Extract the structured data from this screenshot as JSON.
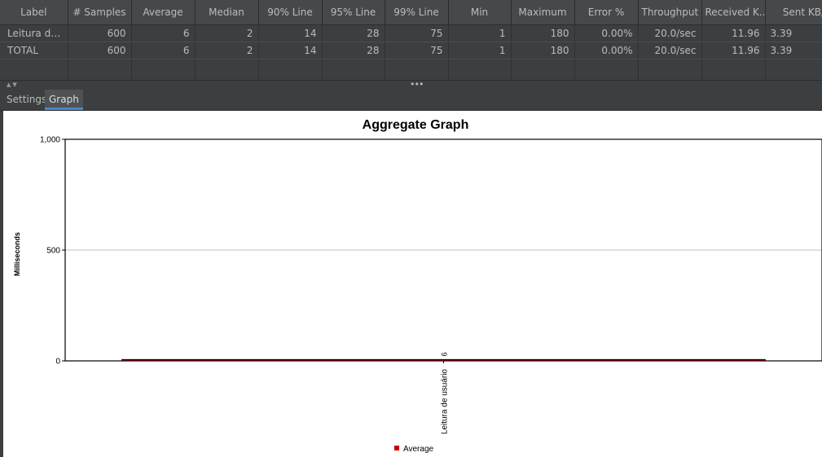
{
  "table": {
    "columns": [
      "Label",
      "# Samples",
      "Average",
      "Median",
      "90% Line",
      "95% Line",
      "99% Line",
      "Min",
      "Maximum",
      "Error %",
      "Throughput",
      "Received K...",
      "Sent KB/sec"
    ],
    "rows": [
      [
        "Leitura de ...",
        "600",
        "6",
        "2",
        "14",
        "28",
        "75",
        "1",
        "180",
        "0.00%",
        "20.0/sec",
        "11.96",
        "3.39"
      ],
      [
        "TOTAL",
        "600",
        "6",
        "2",
        "14",
        "28",
        "75",
        "1",
        "180",
        "0.00%",
        "20.0/sec",
        "11.96",
        "3.39"
      ]
    ]
  },
  "splitter": {
    "grip": "•••"
  },
  "tabs": [
    {
      "label": "Settings",
      "selected": false
    },
    {
      "label": "Graph",
      "selected": true
    }
  ],
  "chart_data": {
    "type": "bar",
    "title": "Aggregate Graph",
    "ylabel": "Milliseconds",
    "xlabel": "",
    "categories": [
      "Leitura de usuário"
    ],
    "series": [
      {
        "name": "Average",
        "values": [
          6
        ],
        "color": "#cc0000"
      }
    ],
    "data_labels": [
      "6"
    ],
    "ylim": [
      0,
      1000
    ],
    "yticks": [
      0,
      500,
      1000
    ],
    "ytick_labels": [
      "0",
      "500",
      "1,000"
    ],
    "grid": true,
    "legend": "bottom"
  },
  "colors": {
    "background": "#3c3f41",
    "header": "#46494b",
    "accent": "#4a88c7",
    "series": "#cc0000"
  }
}
